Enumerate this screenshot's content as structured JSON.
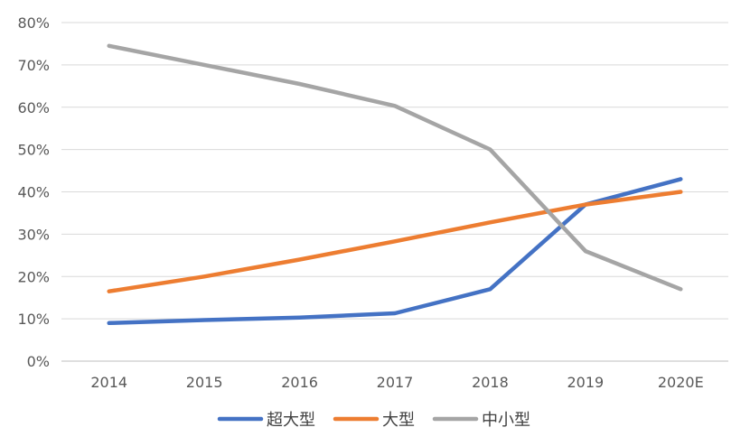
{
  "chart_data": {
    "type": "line",
    "categories": [
      "2014",
      "2015",
      "2016",
      "2017",
      "2018",
      "2019",
      "2020E"
    ],
    "y_ticks": [
      "0%",
      "10%",
      "20%",
      "30%",
      "40%",
      "50%",
      "60%",
      "70%",
      "80%"
    ],
    "ylim": [
      0,
      80
    ],
    "grid": true,
    "legend_position": "bottom",
    "series": [
      {
        "name": "超大型",
        "color": "#4472C4",
        "values": [
          9,
          9.7,
          10.3,
          11.3,
          17,
          37,
          43
        ]
      },
      {
        "name": "大型",
        "color": "#ED7D31",
        "values": [
          16.5,
          20,
          24,
          28.3,
          32.8,
          37,
          40
        ]
      },
      {
        "name": "中小型",
        "color": "#A5A5A5",
        "values": [
          74.5,
          70,
          65.5,
          60.3,
          50,
          26,
          17
        ]
      }
    ]
  }
}
